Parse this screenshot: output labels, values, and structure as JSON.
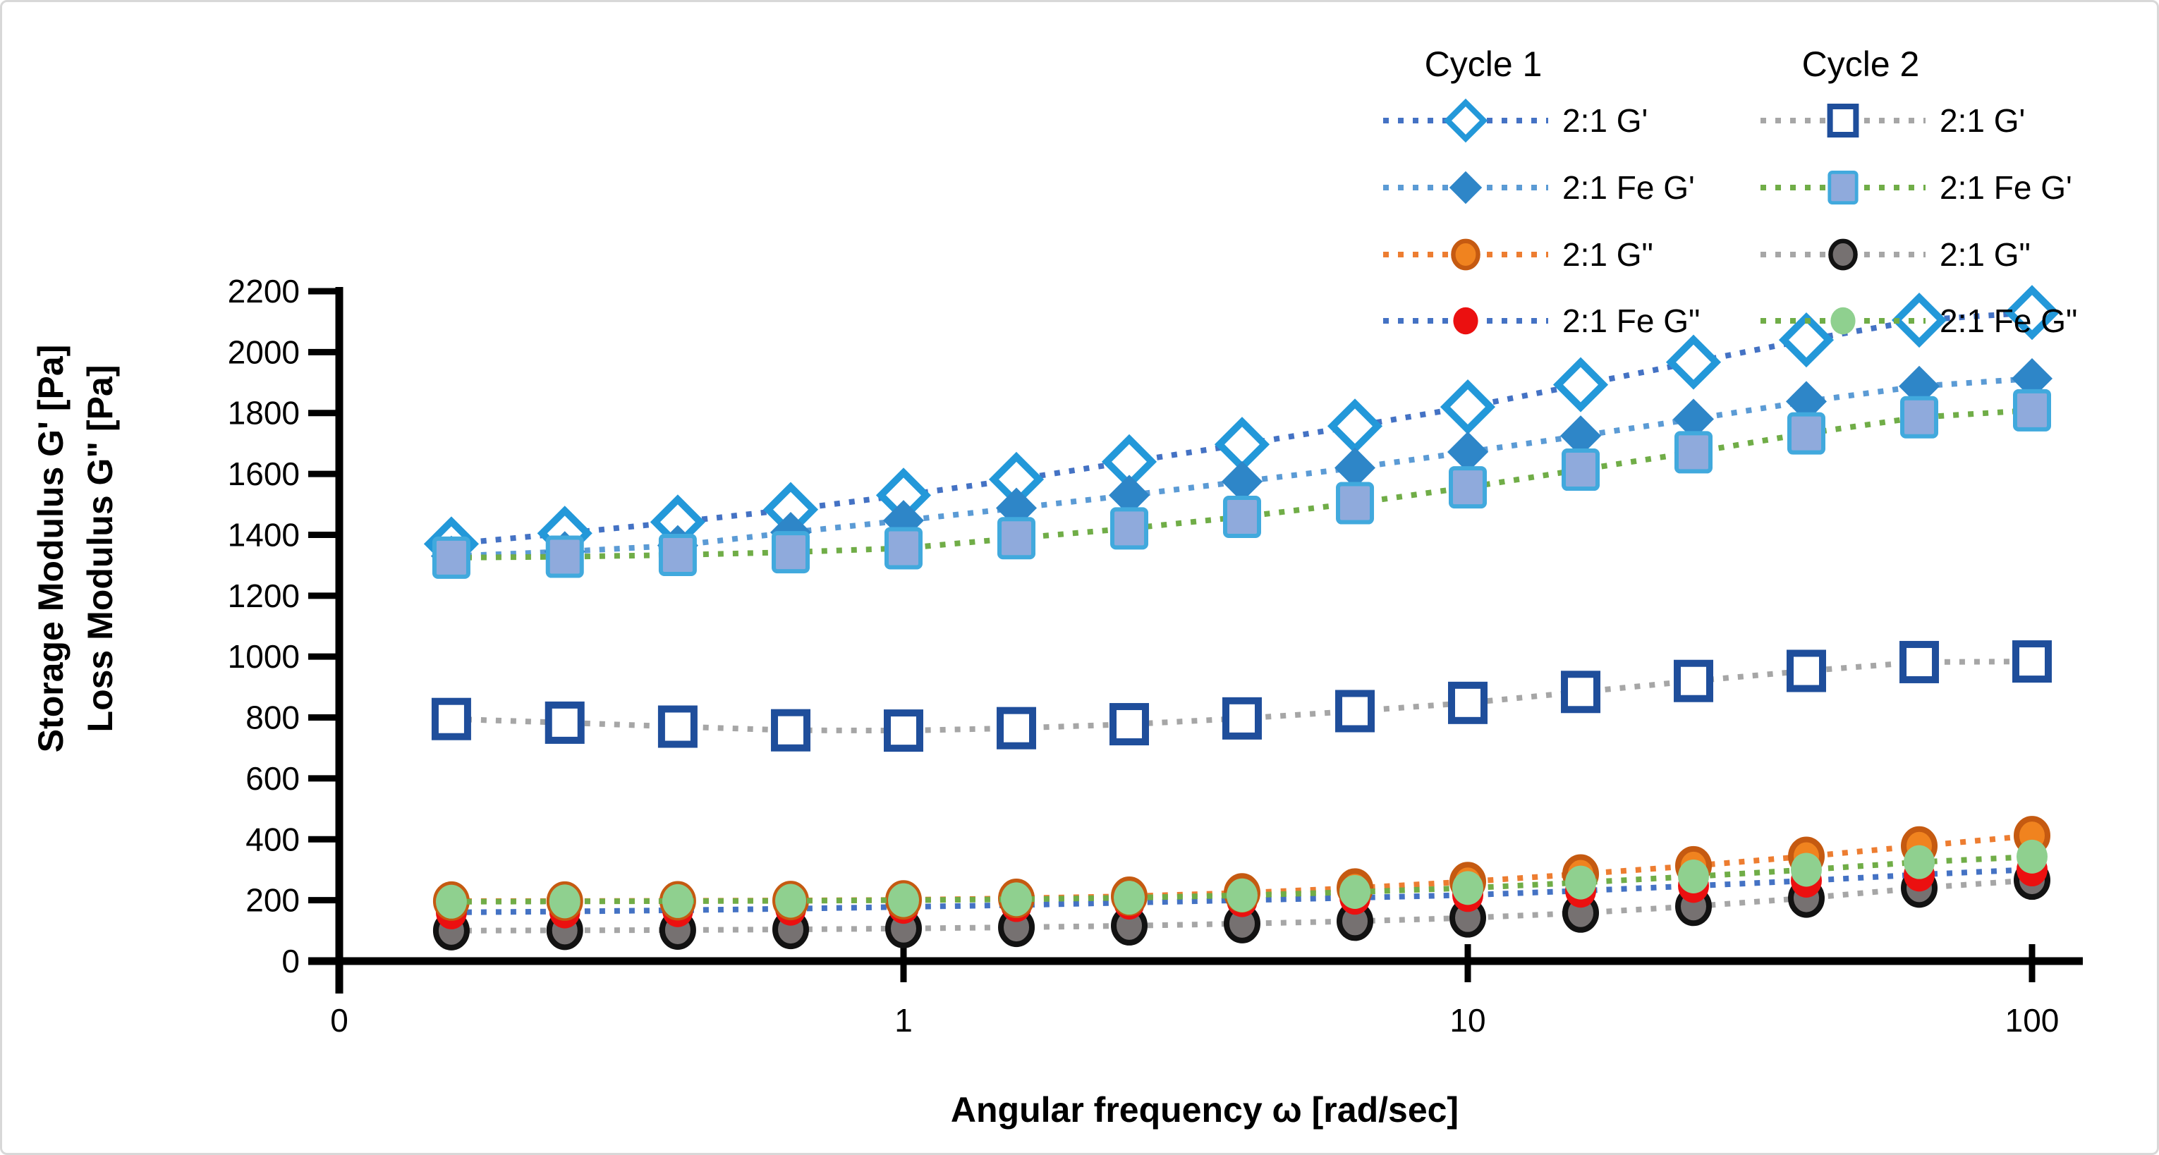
{
  "figure": {
    "background": "#ffffff",
    "frame_border_color": "#d8d8d8"
  },
  "chart_data": {
    "type": "line",
    "x_scale": "log",
    "xlabel": "Angular frequency ω [rad/sec]",
    "ylabel_line1": "Storage Modulus G' [Pa]",
    "ylabel_line2": "Loss Modulus G\" [Pa]",
    "ylim": [
      0,
      2200
    ],
    "xlim": [
      0.1,
      100
    ],
    "grid": false,
    "y_ticks": [
      0,
      200,
      400,
      600,
      800,
      1000,
      1200,
      1400,
      1600,
      1800,
      2000,
      2200
    ],
    "y_tick_labels": [
      "0",
      "200",
      "400",
      "600",
      "800",
      "1000",
      "1200",
      "1400",
      "1600",
      "1800",
      "2000",
      "2200"
    ],
    "x_ticks": [
      0.1,
      1,
      10,
      100
    ],
    "x_tick_labels": [
      "0",
      "1",
      "10",
      "100"
    ],
    "x": [
      0.158,
      0.251,
      0.398,
      0.631,
      1,
      1.585,
      2.512,
      3.981,
      6.31,
      10,
      15.85,
      25.12,
      39.81,
      63.1,
      100
    ],
    "series": [
      {
        "id": "c1G1",
        "label": "2:1 G'",
        "legend_group": "Cycle 1",
        "marker": "open-diamond",
        "marker_fill": "#ffffff",
        "marker_stroke": "#2398D9",
        "line_color": "#4472C4",
        "values": [
          1370,
          1405,
          1442,
          1483,
          1530,
          1582,
          1640,
          1697,
          1757,
          1820,
          1893,
          1967,
          2040,
          2105,
          2130
        ]
      },
      {
        "id": "c1FeG1",
        "label": "2:1 Fe G'",
        "legend_group": "Cycle 1",
        "marker": "diamond",
        "marker_fill": "#2E86C8",
        "marker_stroke": "none",
        "line_color": "#5B9BD5",
        "values": [
          1330,
          1345,
          1365,
          1408,
          1447,
          1488,
          1530,
          1575,
          1620,
          1672,
          1725,
          1780,
          1838,
          1888,
          1913
        ]
      },
      {
        "id": "c2FeG1",
        "label": "2:1 Fe G'",
        "legend_group": "Cycle 2",
        "marker": "square",
        "marker_fill": "#8FAADC",
        "marker_stroke": "#41A9DD",
        "line_color": "#70AD47",
        "values": [
          1325,
          1328,
          1334,
          1343,
          1356,
          1389,
          1421,
          1459,
          1504,
          1556,
          1614,
          1671,
          1733,
          1786,
          1809
        ]
      },
      {
        "id": "c2G1",
        "label": "2:1 G'",
        "legend_group": "Cycle 2",
        "marker": "open-square",
        "marker_fill": "#ffffff",
        "marker_stroke": "#1F4E9B",
        "line_color": "#A6A6A6",
        "values": [
          795,
          783,
          770,
          758,
          757,
          765,
          778,
          797,
          821,
          848,
          884,
          920,
          953,
          982,
          984
        ]
      },
      {
        "id": "c2G2",
        "label": "2:1 G\"",
        "legend_group": "Cycle 2",
        "marker": "circle",
        "marker_fill": "#767171",
        "marker_stroke": "#121212",
        "line_color": "#A6A6A6",
        "values": [
          100,
          101,
          102,
          104,
          107,
          111,
          116,
          123,
          131,
          142,
          158,
          180,
          207,
          240,
          266
        ]
      },
      {
        "id": "c1FeG2",
        "label": "2:1 Fe G\"",
        "legend_group": "Cycle 1",
        "marker": "circle",
        "marker_fill": "#EB1010",
        "marker_stroke": "none",
        "line_color": "#4472C4",
        "values": [
          160,
          163,
          167,
          172,
          178,
          184,
          192,
          200,
          208,
          217,
          231,
          247,
          264,
          284,
          301
        ]
      },
      {
        "id": "c1G2",
        "label": "2:1 G\"",
        "legend_group": "Cycle 1",
        "marker": "circle",
        "marker_fill": "#F0831F",
        "marker_stroke": "#C55A11",
        "line_color": "#ED7D31",
        "values": [
          197,
          197,
          198,
          199,
          201,
          206,
          213,
          224,
          240,
          261,
          286,
          313,
          344,
          378,
          412
        ]
      },
      {
        "id": "c2FeG2",
        "label": "2:1 Fe G\"",
        "legend_group": "Cycle 2",
        "marker": "circle",
        "marker_fill": "#8FD08F",
        "marker_stroke": "none",
        "line_color": "#70AD47",
        "values": [
          195,
          196,
          197,
          198,
          200,
          203,
          208,
          216,
          227,
          240,
          258,
          278,
          300,
          325,
          343
        ]
      }
    ],
    "legend": {
      "position": "top-right",
      "groups": [
        {
          "title": "Cycle 1",
          "item_ids": [
            "c1G1",
            "c1FeG1",
            "c1G2",
            "c1FeG2"
          ]
        },
        {
          "title": "Cycle 2",
          "item_ids": [
            "c2G1",
            "c2FeG1",
            "c2G2",
            "c2FeG2"
          ]
        }
      ]
    }
  }
}
